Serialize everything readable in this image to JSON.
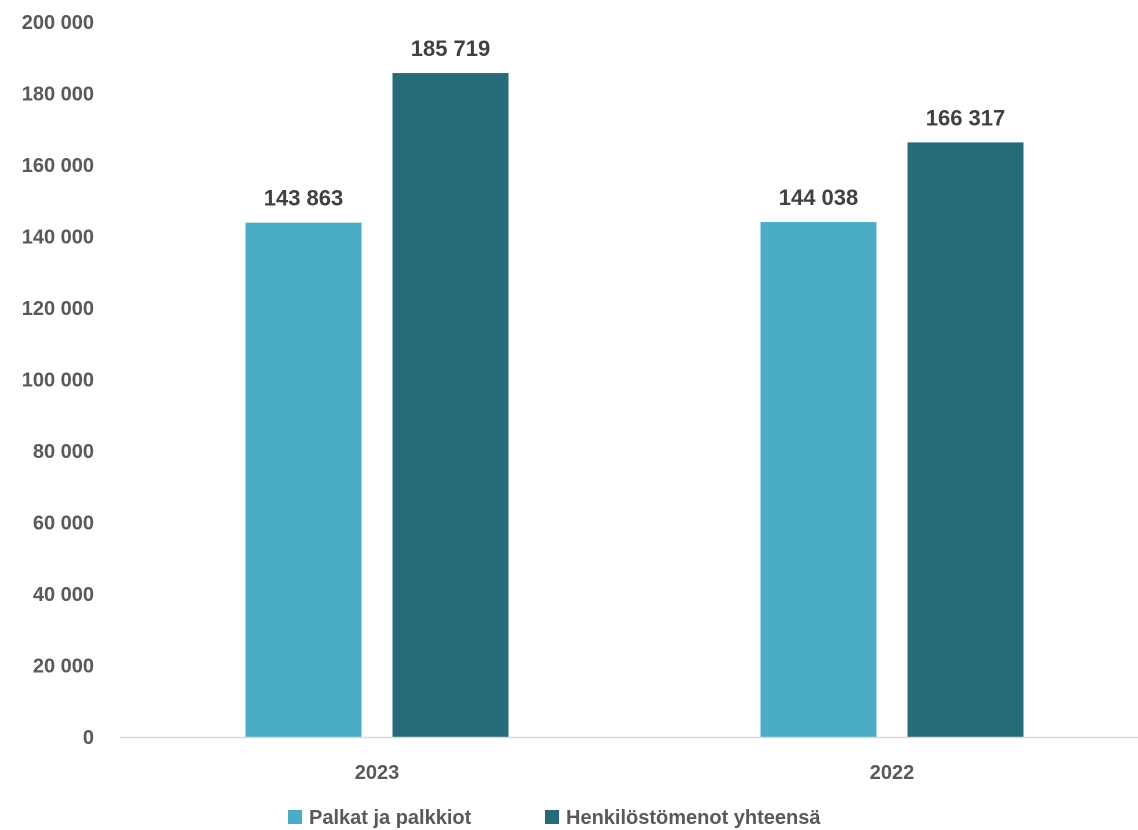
{
  "chart_data": {
    "type": "bar",
    "categories": [
      "2023",
      "2022"
    ],
    "series": [
      {
        "name": "Palkat ja palkkiot",
        "values": [
          143863,
          144038
        ],
        "labels": [
          "143 863",
          "144 038"
        ],
        "color": "#4bacc6"
      },
      {
        "name": "Henkilöstömenot yhteensä",
        "values": [
          185719,
          166317
        ],
        "labels": [
          "185 719",
          "166 317"
        ],
        "color": "#276a7a"
      }
    ],
    "y_ticks": [
      0,
      20000,
      40000,
      60000,
      80000,
      100000,
      120000,
      140000,
      160000,
      180000,
      200000
    ],
    "y_tick_labels": [
      "0",
      "20 000",
      "40 000",
      "60 000",
      "80 000",
      "100 000",
      "120 000",
      "140 000",
      "160 000",
      "180 000",
      "200 000"
    ],
    "ylim": [
      0,
      200000
    ],
    "grid": false,
    "legend_position": "bottom",
    "axis_color": "#d9d9d9"
  }
}
